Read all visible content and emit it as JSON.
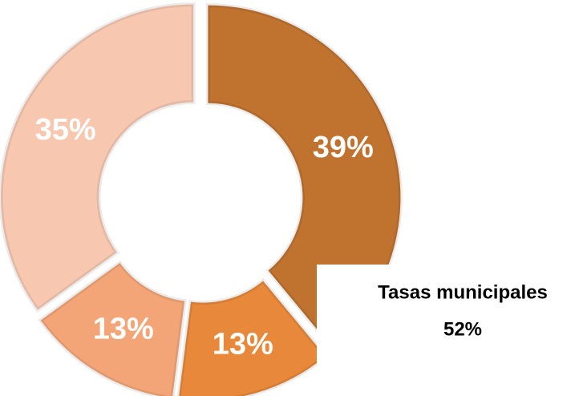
{
  "chart_data": {
    "type": "donut",
    "values": [
      39,
      13,
      13,
      35
    ],
    "value_labels": [
      "39%",
      "13%",
      "13%",
      "35%"
    ],
    "colors": [
      "#c0722f",
      "#e8883a",
      "#f4a577",
      "#f7c7b0"
    ],
    "annotations": [
      {
        "text": "Tasas municipales"
      },
      {
        "text": "52%"
      }
    ]
  }
}
